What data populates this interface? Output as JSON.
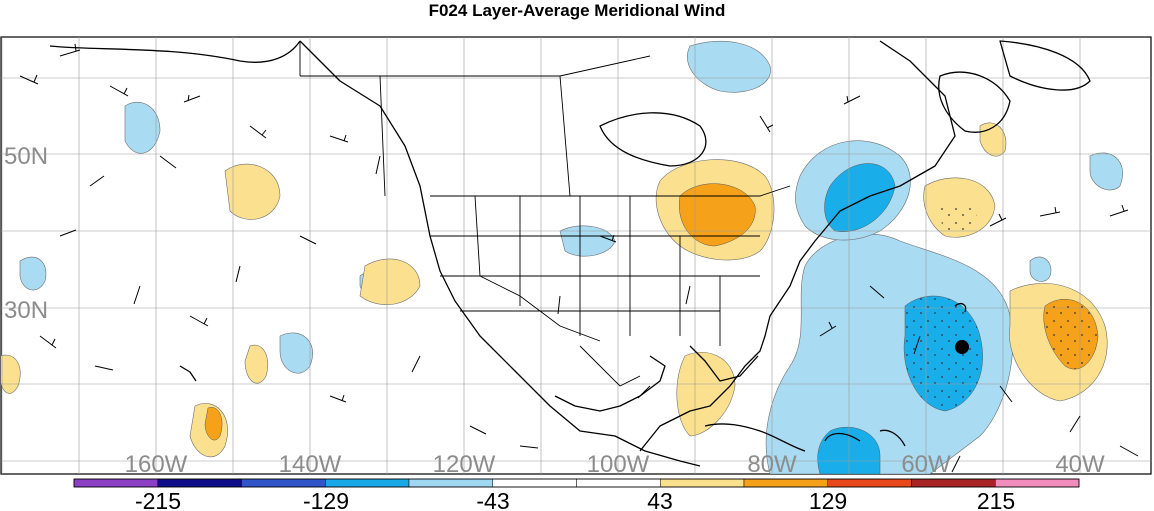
{
  "title": "F024 Layer-Average Meridional Wind",
  "map": {
    "lat_labels": [
      "50N",
      "30N"
    ],
    "lon_labels": [
      "160W",
      "140W",
      "120W",
      "100W",
      "80W",
      "60W",
      "40W"
    ],
    "marker": "station-dot"
  },
  "colorbar": {
    "colors": [
      "#8a3fc4",
      "#0d0d87",
      "#2f55c8",
      "#18a8e8",
      "#9fd6f2",
      "#ffffff",
      "#ffffff",
      "#fbe08e",
      "#f5a019",
      "#e8481b",
      "#a82424",
      "#f28cbd"
    ],
    "tick_labels": [
      "-215",
      "-129",
      "-43",
      "43",
      "129",
      "215"
    ]
  }
}
